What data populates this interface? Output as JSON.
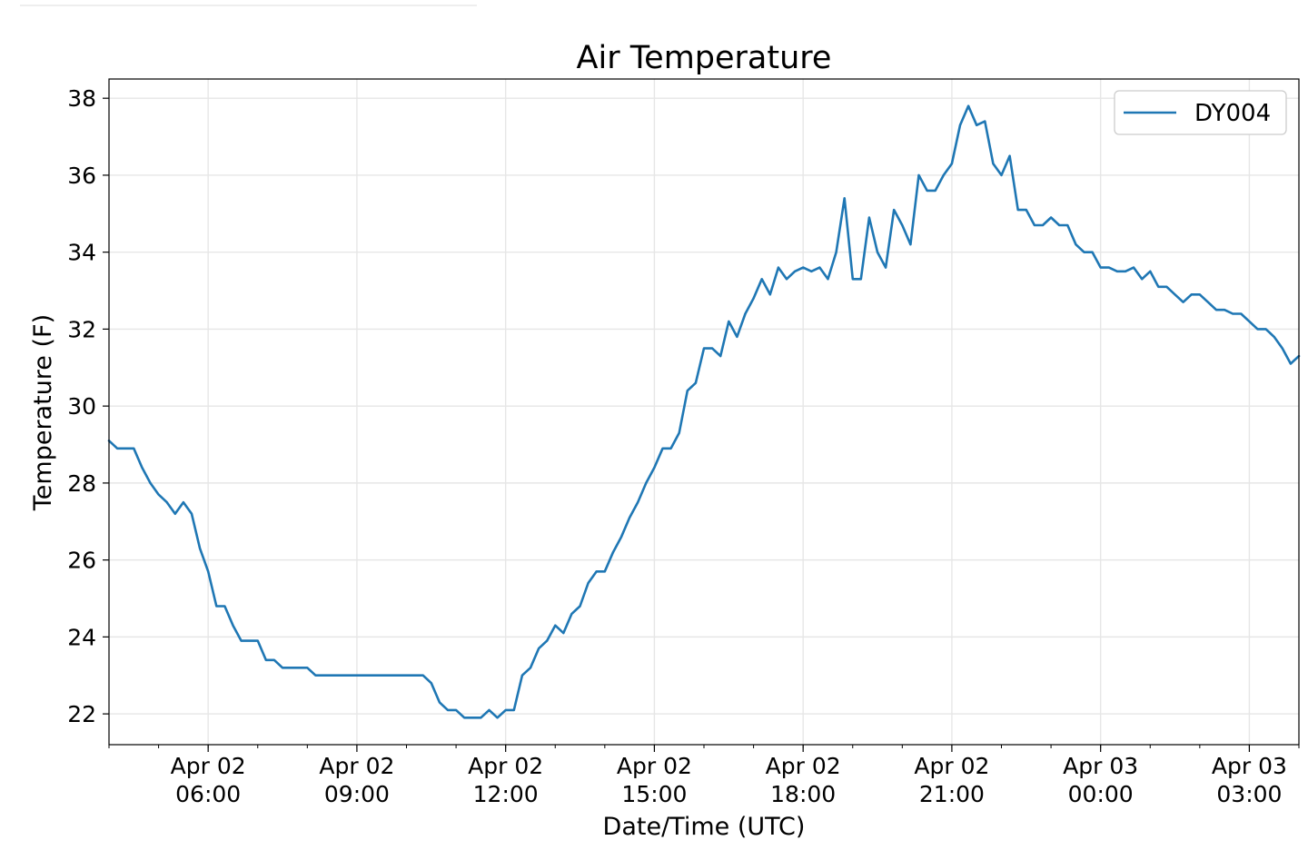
{
  "chart_data": {
    "type": "line",
    "title": "Air Temperature",
    "xlabel": "Date/Time (UTC)",
    "ylabel": "Temperature (F)",
    "ylim": [
      21.2,
      38.5
    ],
    "xlim": [
      "2020-04-02T04:00",
      "2020-04-03T04:00"
    ],
    "grid": true,
    "legend_position": "top-right",
    "y_ticks": [
      22,
      24,
      26,
      28,
      30,
      32,
      34,
      36,
      38
    ],
    "x_ticks": [
      {
        "t": "2020-04-02T06:00",
        "line1": "Apr 02",
        "line2": "06:00"
      },
      {
        "t": "2020-04-02T09:00",
        "line1": "Apr 02",
        "line2": "09:00"
      },
      {
        "t": "2020-04-02T12:00",
        "line1": "Apr 02",
        "line2": "12:00"
      },
      {
        "t": "2020-04-02T15:00",
        "line1": "Apr 02",
        "line2": "15:00"
      },
      {
        "t": "2020-04-02T18:00",
        "line1": "Apr 02",
        "line2": "18:00"
      },
      {
        "t": "2020-04-02T21:00",
        "line1": "Apr 02",
        "line2": "21:00"
      },
      {
        "t": "2020-04-03T00:00",
        "line1": "Apr 03",
        "line2": "00:00"
      },
      {
        "t": "2020-04-03T03:00",
        "line1": "Apr 03",
        "line2": "03:00"
      }
    ],
    "series": [
      {
        "name": "DY004",
        "color": "#1f77b4",
        "x": [
          "2020-04-02T04:00",
          "2020-04-02T04:10",
          "2020-04-02T04:20",
          "2020-04-02T04:30",
          "2020-04-02T04:40",
          "2020-04-02T04:50",
          "2020-04-02T05:00",
          "2020-04-02T05:10",
          "2020-04-02T05:20",
          "2020-04-02T05:30",
          "2020-04-02T05:40",
          "2020-04-02T05:50",
          "2020-04-02T06:00",
          "2020-04-02T06:10",
          "2020-04-02T06:20",
          "2020-04-02T06:30",
          "2020-04-02T06:40",
          "2020-04-02T06:50",
          "2020-04-02T07:00",
          "2020-04-02T07:10",
          "2020-04-02T07:20",
          "2020-04-02T07:30",
          "2020-04-02T07:40",
          "2020-04-02T07:50",
          "2020-04-02T08:00",
          "2020-04-02T08:10",
          "2020-04-02T08:20",
          "2020-04-02T08:30",
          "2020-04-02T08:40",
          "2020-04-02T08:50",
          "2020-04-02T09:00",
          "2020-04-02T09:10",
          "2020-04-02T09:20",
          "2020-04-02T09:30",
          "2020-04-02T09:40",
          "2020-04-02T09:50",
          "2020-04-02T10:00",
          "2020-04-02T10:10",
          "2020-04-02T10:20",
          "2020-04-02T10:30",
          "2020-04-02T10:40",
          "2020-04-02T10:50",
          "2020-04-02T11:00",
          "2020-04-02T11:10",
          "2020-04-02T11:20",
          "2020-04-02T11:30",
          "2020-04-02T11:40",
          "2020-04-02T11:50",
          "2020-04-02T12:00",
          "2020-04-02T12:10",
          "2020-04-02T12:20",
          "2020-04-02T12:30",
          "2020-04-02T12:40",
          "2020-04-02T12:50",
          "2020-04-02T13:00",
          "2020-04-02T13:10",
          "2020-04-02T13:20",
          "2020-04-02T13:30",
          "2020-04-02T13:40",
          "2020-04-02T13:50",
          "2020-04-02T14:00",
          "2020-04-02T14:10",
          "2020-04-02T14:20",
          "2020-04-02T14:30",
          "2020-04-02T14:40",
          "2020-04-02T14:50",
          "2020-04-02T15:00",
          "2020-04-02T15:10",
          "2020-04-02T15:20",
          "2020-04-02T15:30",
          "2020-04-02T15:40",
          "2020-04-02T15:50",
          "2020-04-02T16:00",
          "2020-04-02T16:10",
          "2020-04-02T16:20",
          "2020-04-02T16:30",
          "2020-04-02T16:40",
          "2020-04-02T16:50",
          "2020-04-02T17:00",
          "2020-04-02T17:10",
          "2020-04-02T17:20",
          "2020-04-02T17:30",
          "2020-04-02T17:40",
          "2020-04-02T17:50",
          "2020-04-02T18:00",
          "2020-04-02T18:10",
          "2020-04-02T18:20",
          "2020-04-02T18:30",
          "2020-04-02T18:40",
          "2020-04-02T18:50",
          "2020-04-02T19:00",
          "2020-04-02T19:10",
          "2020-04-02T19:20",
          "2020-04-02T19:30",
          "2020-04-02T19:40",
          "2020-04-02T19:50",
          "2020-04-02T20:00",
          "2020-04-02T20:10",
          "2020-04-02T20:20",
          "2020-04-02T20:30",
          "2020-04-02T20:40",
          "2020-04-02T20:50",
          "2020-04-02T21:00",
          "2020-04-02T21:10",
          "2020-04-02T21:20",
          "2020-04-02T21:30",
          "2020-04-02T21:40",
          "2020-04-02T21:50",
          "2020-04-02T22:00",
          "2020-04-02T22:10",
          "2020-04-02T22:20",
          "2020-04-02T22:30",
          "2020-04-02T22:40",
          "2020-04-02T22:50",
          "2020-04-02T23:00",
          "2020-04-02T23:10",
          "2020-04-02T23:20",
          "2020-04-02T23:30",
          "2020-04-02T23:40",
          "2020-04-02T23:50",
          "2020-04-03T00:00",
          "2020-04-03T00:10",
          "2020-04-03T00:20",
          "2020-04-03T00:30",
          "2020-04-03T00:40",
          "2020-04-03T00:50",
          "2020-04-03T01:00",
          "2020-04-03T01:10",
          "2020-04-03T01:20",
          "2020-04-03T01:30",
          "2020-04-03T01:40",
          "2020-04-03T01:50",
          "2020-04-03T02:00",
          "2020-04-03T02:10",
          "2020-04-03T02:20",
          "2020-04-03T02:30",
          "2020-04-03T02:40",
          "2020-04-03T02:50",
          "2020-04-03T03:00",
          "2020-04-03T03:10",
          "2020-04-03T03:20",
          "2020-04-03T03:30",
          "2020-04-03T03:40",
          "2020-04-03T03:50",
          "2020-04-03T04:00"
        ],
        "y": [
          29.1,
          28.9,
          28.9,
          28.9,
          28.4,
          28.0,
          27.7,
          27.5,
          27.2,
          27.5,
          27.2,
          26.3,
          25.7,
          24.8,
          24.8,
          24.3,
          23.9,
          23.9,
          23.9,
          23.4,
          23.4,
          23.2,
          23.2,
          23.2,
          23.2,
          23.0,
          23.0,
          23.0,
          23.0,
          23.0,
          23.0,
          23.0,
          23.0,
          23.0,
          23.0,
          23.0,
          23.0,
          23.0,
          23.0,
          22.8,
          22.3,
          22.1,
          22.1,
          21.9,
          21.9,
          21.9,
          22.1,
          21.9,
          22.1,
          22.1,
          23.0,
          23.2,
          23.7,
          23.9,
          24.3,
          24.1,
          24.6,
          24.8,
          25.4,
          25.7,
          25.7,
          26.2,
          26.6,
          27.1,
          27.5,
          28.0,
          28.4,
          28.9,
          28.9,
          29.3,
          30.4,
          30.6,
          31.5,
          31.5,
          31.3,
          32.2,
          31.8,
          32.4,
          32.8,
          33.3,
          32.9,
          33.6,
          33.3,
          33.5,
          33.6,
          33.5,
          33.6,
          33.3,
          34.0,
          35.4,
          33.3,
          33.3,
          34.9,
          34.0,
          33.6,
          35.1,
          34.7,
          34.2,
          36.0,
          35.6,
          35.6,
          36.0,
          36.3,
          37.3,
          37.8,
          37.3,
          37.4,
          36.3,
          36.0,
          36.5,
          35.1,
          35.1,
          34.7,
          34.7,
          34.9,
          34.7,
          34.7,
          34.2,
          34.0,
          34.0,
          33.6,
          33.6,
          33.5,
          33.5,
          33.6,
          33.3,
          33.5,
          33.1,
          33.1,
          32.9,
          32.7,
          32.9,
          32.9,
          32.7,
          32.5,
          32.5,
          32.4,
          32.4,
          32.2,
          32.0,
          32.0,
          31.8,
          31.5,
          31.1,
          31.3
        ]
      }
    ]
  }
}
